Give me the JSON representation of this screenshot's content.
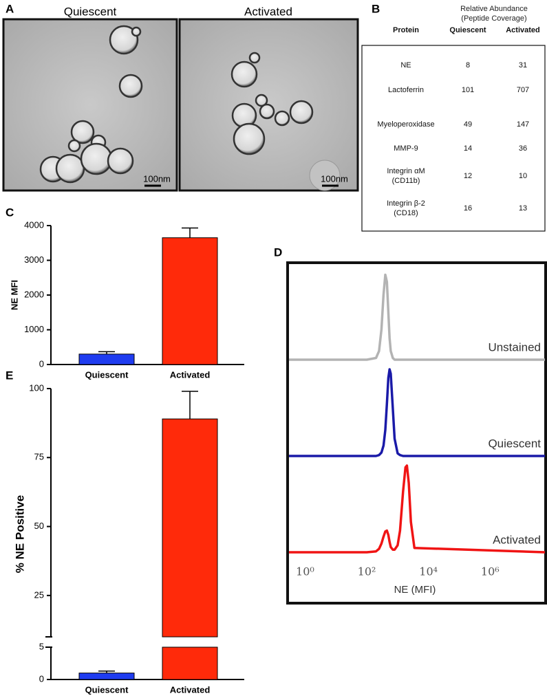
{
  "panels": {
    "A": {
      "label": "A",
      "images": [
        {
          "title": "Quiescent",
          "scale_bar": "100nm"
        },
        {
          "title": "Activated",
          "scale_bar": "100nm"
        }
      ]
    },
    "B": {
      "label": "B",
      "header": "Relative Abundance (Peptide Coverage)",
      "table": {
        "columns": [
          "Protein",
          "Quiescent",
          "Activated"
        ],
        "rows": [
          [
            "NE",
            8,
            31
          ],
          [
            "Lactoferrin",
            101,
            707
          ],
          [
            "Myeloperoxidase",
            49,
            147
          ],
          [
            "MMP-9",
            14,
            36
          ],
          [
            "Integrin αM (CD11b)",
            12,
            10
          ],
          [
            "Integrin β-2 (CD18)",
            16,
            13
          ]
        ]
      }
    }
  },
  "chart_data": [
    {
      "type": "bar",
      "label": "C",
      "y_label": "NE MFI",
      "categories": [
        "Quiescent",
        "Activated"
      ],
      "values": [
        300,
        3650
      ],
      "errors": [
        70,
        280
      ],
      "colors": [
        "#1f3cf0",
        "#ff2a0a"
      ],
      "ylim": [
        0,
        4000
      ],
      "yticks": [
        0,
        1000,
        2000,
        3000,
        4000
      ]
    },
    {
      "type": "histogram-overlay",
      "label": "D",
      "x_label": "NE (MFI)",
      "log_x": true,
      "xlim": [
        0.3,
        60000000
      ],
      "ylim": [
        0,
        100
      ],
      "xticks": [
        {
          "value": 1,
          "label": "10⁰"
        },
        {
          "value": 100,
          "label": "10²"
        },
        {
          "value": 10000,
          "label": "10⁴"
        },
        {
          "value": 1000000,
          "label": "10⁶"
        }
      ],
      "x": [
        0.3,
        100,
        200,
        250,
        300,
        350,
        400,
        450,
        500,
        550,
        600,
        700,
        800,
        1000,
        1200,
        1500,
        1800,
        2000,
        2300,
        2700,
        3500,
        60000000
      ],
      "series": [
        {
          "name": "Unstained",
          "color": "#b3b3b3",
          "values": [
            0,
            0,
            2,
            10,
            35,
            75,
            98,
            90,
            55,
            25,
            10,
            2,
            0,
            0,
            0,
            0,
            0,
            0,
            0,
            0,
            0,
            0
          ]
        },
        {
          "name": "Quiescent",
          "color": "#1a1aa8",
          "values": [
            0,
            0,
            0,
            1,
            4,
            12,
            30,
            60,
            90,
            100,
            95,
            55,
            20,
            3,
            1,
            0,
            0,
            0,
            0,
            0,
            0,
            0
          ]
        },
        {
          "name": "Activated",
          "color": "#f01414",
          "values": [
            0,
            0,
            1,
            4,
            10,
            18,
            24,
            25,
            20,
            12,
            6,
            3,
            3,
            8,
            25,
            70,
            98,
            100,
            80,
            35,
            5,
            0
          ]
        }
      ]
    },
    {
      "type": "bar",
      "label": "E",
      "y_label": "% NE Positive",
      "categories": [
        "Quiescent",
        "Activated"
      ],
      "values": [
        1,
        89
      ],
      "errors": [
        0.3,
        10
      ],
      "colors": [
        "#1f3cf0",
        "#ff2a0a"
      ],
      "ylim": [
        0,
        100
      ],
      "axis_break": [
        5,
        10
      ],
      "yticks": [
        0,
        5,
        25,
        50,
        75,
        100
      ]
    }
  ]
}
